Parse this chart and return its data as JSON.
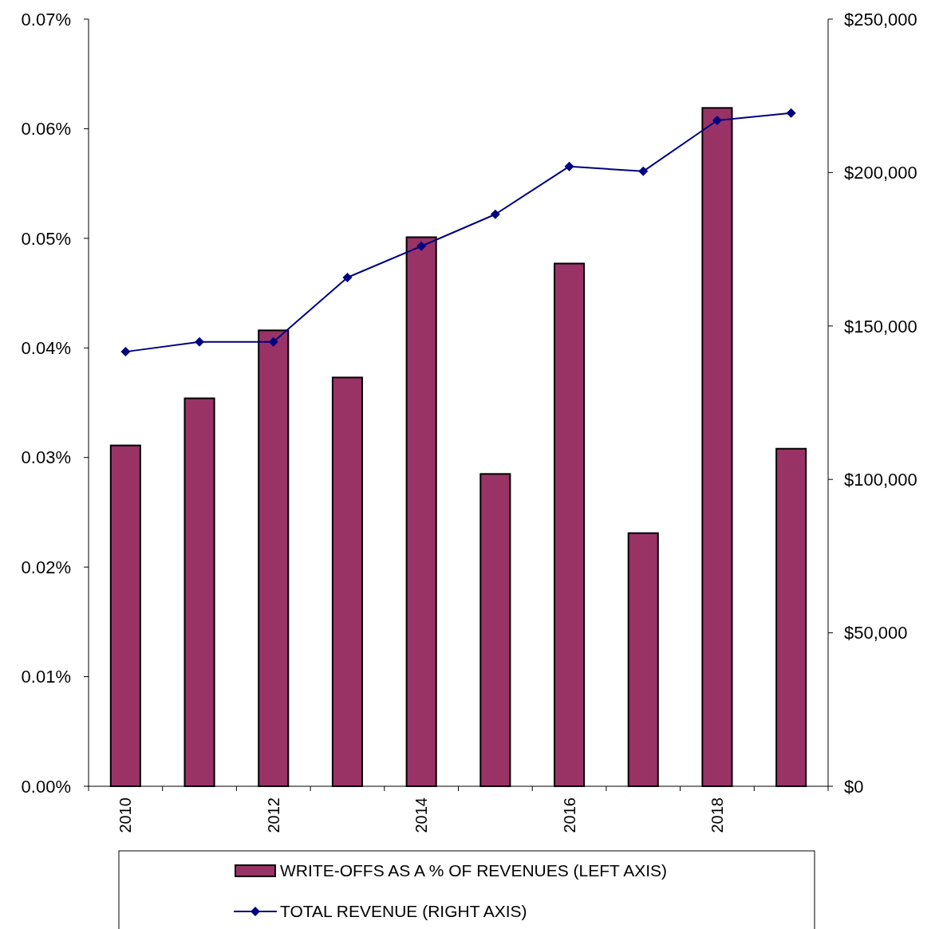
{
  "chart_data": {
    "type": "bar",
    "categories": [
      "2010",
      null,
      "2012",
      null,
      "2014",
      null,
      "2016",
      null,
      "2018",
      null
    ],
    "series": [
      {
        "name": "WRITE-OFFS AS A % OF REVENUES (LEFT AXIS)",
        "color": "#993366",
        "values": [
          0.0311,
          0.0354,
          0.0416,
          0.0373,
          0.0501,
          0.0285,
          0.0477,
          0.0231,
          0.0619,
          0.0308
        ]
      },
      {
        "name": "TOTAL REVENUE (RIGHT AXIS)",
        "type": "line",
        "axis": "y2",
        "color": "#000080",
        "marker": "diamond",
        "values": [
          141600,
          144800,
          144800,
          165800,
          176000,
          186400,
          202000,
          200400,
          217000,
          219400
        ]
      }
    ],
    "ylim": [
      0,
      0.07
    ],
    "yticks": [
      {
        "value": 0,
        "label": "0.00%"
      },
      {
        "value": 0.01,
        "label": "0.01%"
      },
      {
        "value": 0.02,
        "label": "0.02%"
      },
      {
        "value": 0.03,
        "label": "0.03%"
      },
      {
        "value": 0.04,
        "label": "0.04%"
      },
      {
        "value": 0.05,
        "label": "0.05%"
      },
      {
        "value": 0.06,
        "label": "0.06%"
      },
      {
        "value": 0.07,
        "label": "0.07%"
      }
    ],
    "y2lim": [
      0,
      250000
    ],
    "y2ticks": [
      {
        "value": 0,
        "label": "$0"
      },
      {
        "value": 50000,
        "label": "$50,000"
      },
      {
        "value": 100000,
        "label": "$100,000"
      },
      {
        "value": 150000,
        "label": "$150,000"
      },
      {
        "value": 200000,
        "label": "$200,000"
      },
      {
        "value": 250000,
        "label": "$250,000"
      }
    ],
    "grid": false,
    "legend": "bottom"
  }
}
